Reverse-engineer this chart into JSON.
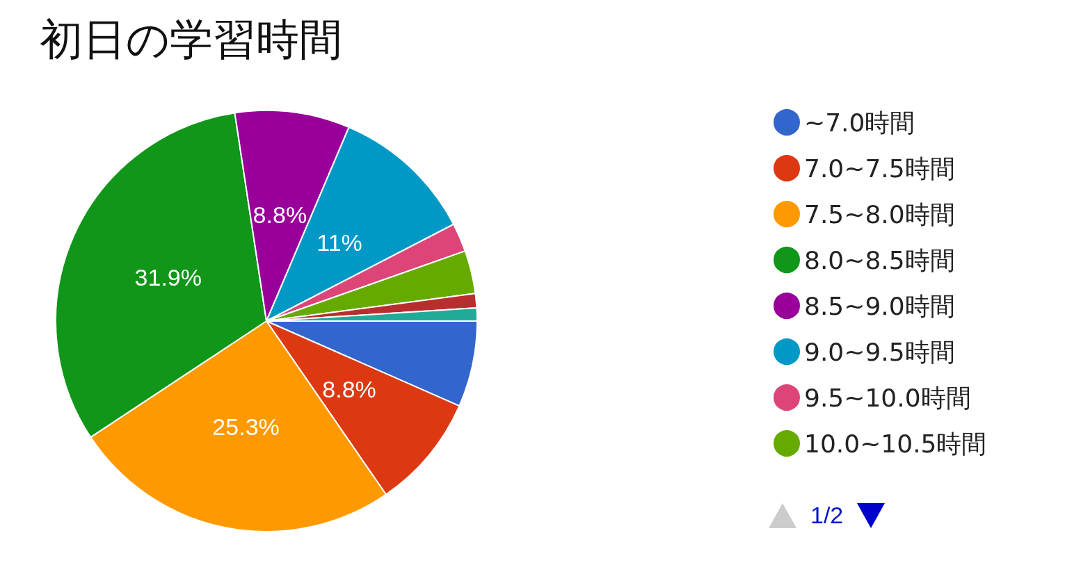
{
  "chart_data": {
    "type": "pie",
    "title": "初日の学習時間",
    "categories": [
      "~7.0時間",
      "7.0~7.5時間",
      "7.5~8.0時間",
      "8.0~8.5時間",
      "8.5~9.0時間",
      "9.0~9.5時間",
      "9.5~10.0時間",
      "10.0~10.5時間",
      null,
      null
    ],
    "values": [
      6.6,
      8.8,
      25.3,
      31.9,
      8.8,
      11,
      2.2,
      3.3,
      1.1,
      1.0
    ],
    "colors": [
      "#3366cc",
      "#dc3912",
      "#ff9900",
      "#109618",
      "#990099",
      "#0099c6",
      "#dd4477",
      "#66aa00",
      "#b82e2e",
      "#22aa99"
    ],
    "value_labels": [
      null,
      "8.8%",
      "25.3%",
      "31.9%",
      "8.8%",
      "11%",
      null,
      null,
      null,
      null
    ],
    "legend": "right",
    "annotations": [
      "1/2"
    ]
  }
}
